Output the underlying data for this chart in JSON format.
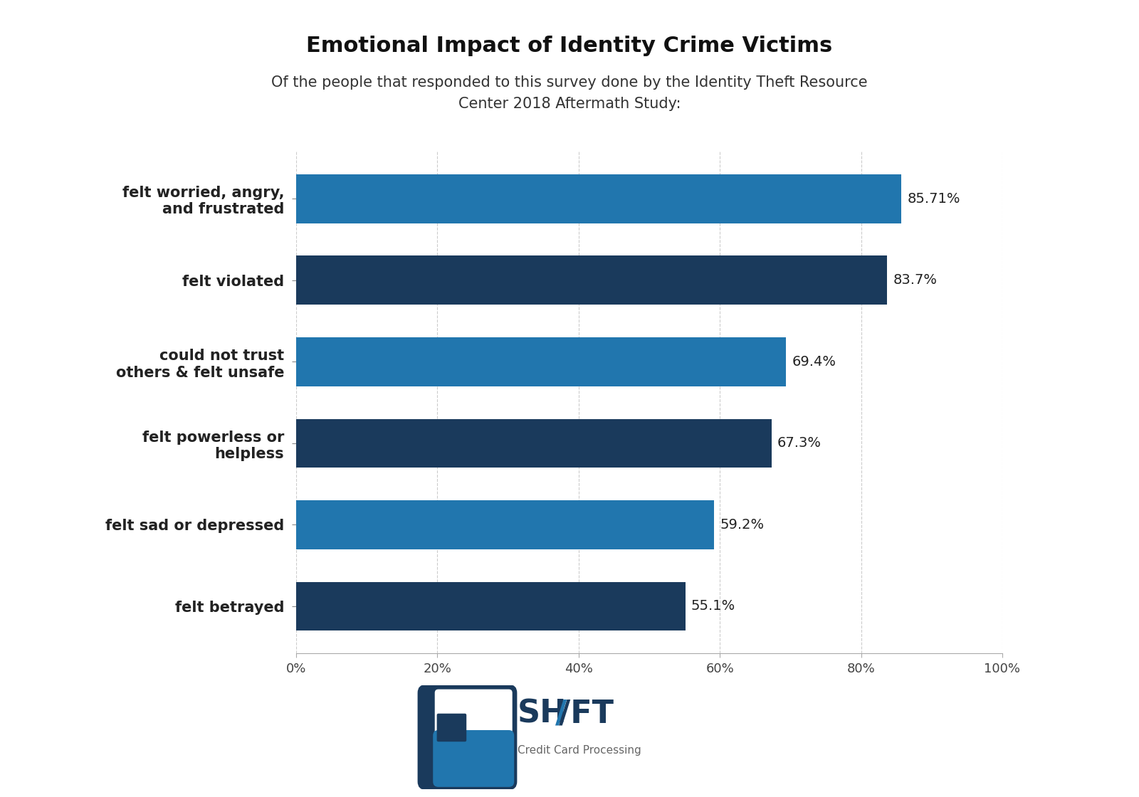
{
  "title": "Emotional Impact of Identity Crime Victims",
  "subtitle": "Of the people that responded to this survey done by the Identity Theft Resource\nCenter 2018 Aftermath Study:",
  "categories": [
    "felt betrayed",
    "felt sad or depressed",
    "felt powerless or\nhelpless",
    "could not trust\nothers & felt unsafe",
    "felt violated",
    "felt worried, angry,\nand frustrated"
  ],
  "values": [
    55.1,
    59.2,
    67.3,
    69.4,
    83.7,
    85.71
  ],
  "bar_colors": [
    "#1a3a5c",
    "#2176ae",
    "#1a3a5c",
    "#2176ae",
    "#1a3a5c",
    "#2176ae"
  ],
  "value_labels": [
    "55.1%",
    "59.2%",
    "67.3%",
    "69.4%",
    "83.7%",
    "85.71%"
  ],
  "xlim": [
    0,
    100
  ],
  "xtick_values": [
    0,
    20,
    40,
    60,
    80,
    100
  ],
  "xtick_labels": [
    "0%",
    "20%",
    "40%",
    "60%",
    "80%",
    "100%"
  ],
  "background_color": "#ffffff",
  "title_fontsize": 22,
  "subtitle_fontsize": 15,
  "label_fontsize": 15,
  "value_fontsize": 14,
  "tick_fontsize": 13,
  "dark_blue": "#1a3a5c",
  "light_blue": "#2176ae",
  "logo_shift_fontsize": 32,
  "logo_sub_fontsize": 11
}
